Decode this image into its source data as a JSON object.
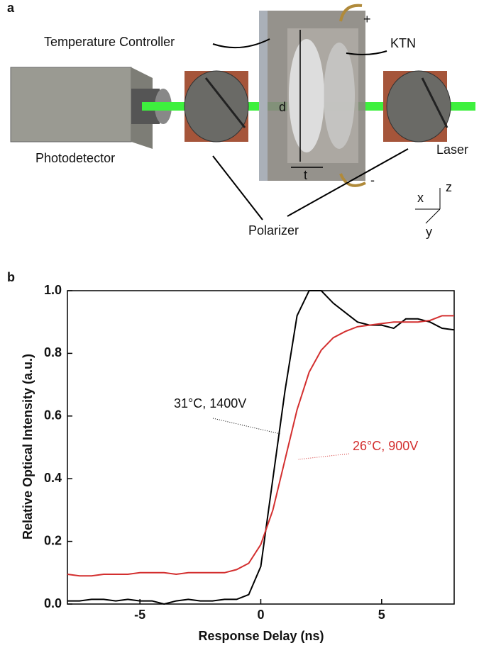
{
  "diagram": {
    "panel": "a",
    "labels": {
      "controller": "Temperature Controller",
      "ktn": "KTN",
      "plus": "+",
      "minus": "-",
      "d": "d",
      "t": "t",
      "photodetector": "Photodetector",
      "laser": "Laser",
      "polarizer": "Polarizer",
      "x": "x",
      "y": "y",
      "z": "z"
    }
  },
  "chart_data": {
    "type": "line",
    "panel": "b",
    "xlabel": "Response Delay (ns)",
    "ylabel": "Relative Optical Intensity (a.u.)",
    "x": [
      -8,
      -7.5,
      -7,
      -6.5,
      -6,
      -5.5,
      -5,
      -4.5,
      -4,
      -3.5,
      -3,
      -2.5,
      -2,
      -1.5,
      -1,
      -0.5,
      0,
      0.5,
      1,
      1.5,
      2,
      2.5,
      3,
      3.5,
      4,
      4.5,
      5,
      5.5,
      6,
      6.5,
      7,
      7.5,
      8
    ],
    "series": [
      {
        "name": "31°C, 1400V",
        "color": "#000000",
        "values": [
          0.01,
          0.01,
          0.015,
          0.015,
          0.01,
          0.015,
          0.01,
          0.01,
          0.0,
          0.01,
          0.015,
          0.01,
          0.01,
          0.015,
          0.015,
          0.03,
          0.12,
          0.4,
          0.68,
          0.92,
          1.0,
          1.0,
          0.96,
          0.93,
          0.9,
          0.89,
          0.89,
          0.88,
          0.91,
          0.91,
          0.9,
          0.88,
          0.875
        ]
      },
      {
        "name": "26°C, 900V",
        "color": "#d32f2f",
        "values": [
          0.095,
          0.09,
          0.09,
          0.095,
          0.095,
          0.095,
          0.1,
          0.1,
          0.1,
          0.095,
          0.1,
          0.1,
          0.1,
          0.1,
          0.11,
          0.13,
          0.19,
          0.3,
          0.46,
          0.62,
          0.74,
          0.81,
          0.85,
          0.87,
          0.885,
          0.89,
          0.895,
          0.9,
          0.9,
          0.9,
          0.905,
          0.92,
          0.92
        ]
      }
    ],
    "xlim": [
      -8,
      8
    ],
    "xticks": [
      -5,
      0,
      5
    ],
    "ylim": [
      0,
      1
    ],
    "yticks": [
      {
        "value": 0,
        "label": "0.0"
      },
      0.2,
      0.4,
      0.6,
      0.8,
      {
        "value": 1,
        "label": "1.0"
      }
    ]
  }
}
